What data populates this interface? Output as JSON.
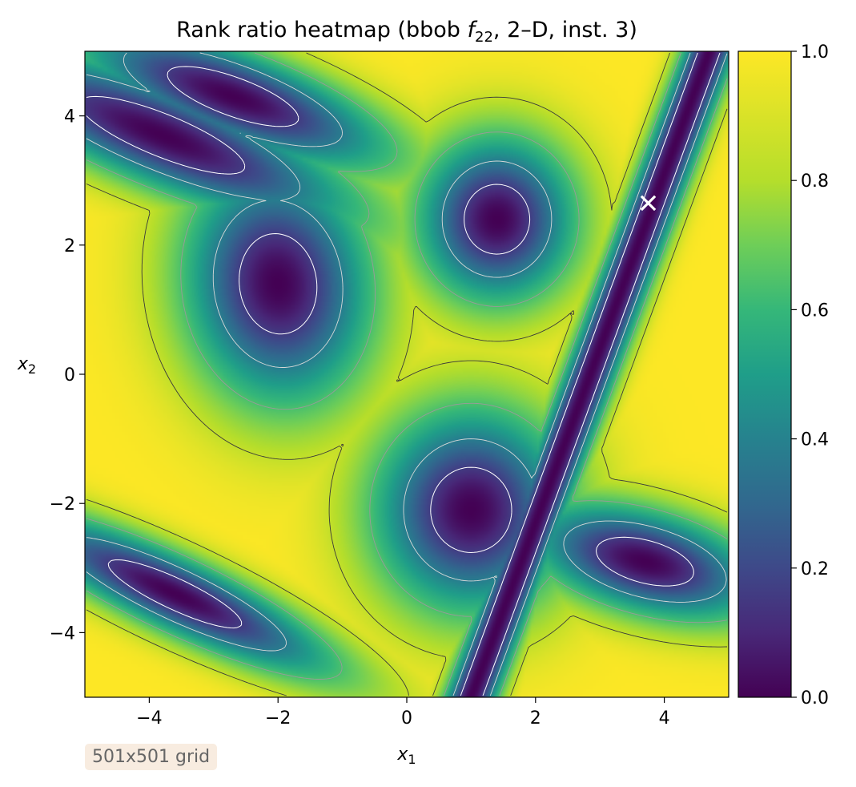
{
  "chart_data": {
    "type": "heatmap",
    "title_parts": {
      "prefix": "Rank ratio heatmap (bbob ",
      "func": "f",
      "sub": "22",
      "suffix": ", 2–D, inst. 3)"
    },
    "xlabel": {
      "base": "x",
      "sub": "1"
    },
    "ylabel": {
      "base": "x",
      "sub": "2"
    },
    "xlim": [
      -5,
      5
    ],
    "ylim": [
      -5,
      5
    ],
    "xticks": [
      -4,
      -2,
      0,
      2,
      4
    ],
    "yticks": [
      -4,
      -2,
      0,
      2,
      4
    ],
    "xtick_labels": [
      "−4",
      "−2",
      "0",
      "2",
      "4"
    ],
    "ytick_labels": [
      "−4",
      "−2",
      "0",
      "2",
      "4"
    ],
    "colormap": "viridis",
    "colorbar": {
      "range": [
        0,
        1
      ],
      "ticks": [
        0.0,
        0.2,
        0.4,
        0.6,
        0.8,
        1.0
      ],
      "tick_labels": [
        "0.0",
        "0.2",
        "0.4",
        "0.6",
        "0.8",
        "1.0"
      ]
    },
    "grid": false,
    "basins": [
      {
        "name": "upper-left elongated",
        "center": [
          -3.8,
          3.7
        ],
        "semi_axes": [
          2.3,
          0.55
        ],
        "angle_deg": -22
      },
      {
        "name": "top ellipse",
        "center": [
          -2.7,
          4.3
        ],
        "semi_axes": [
          1.8,
          0.5
        ],
        "angle_deg": -20
      },
      {
        "name": "left-center oval",
        "center": [
          -2.0,
          1.4
        ],
        "semi_axes": [
          1.0,
          1.3
        ],
        "angle_deg": 8
      },
      {
        "name": "upper-center round",
        "center": [
          1.4,
          2.4
        ],
        "semi_axes": [
          0.85,
          0.9
        ],
        "angle_deg": 0
      },
      {
        "name": "lower-center round",
        "center": [
          1.0,
          -2.1
        ],
        "semi_axes": [
          1.05,
          1.1
        ],
        "angle_deg": 0
      },
      {
        "name": "lower-left elongated",
        "center": [
          -3.6,
          -3.4
        ],
        "semi_axes": [
          1.9,
          0.4
        ],
        "angle_deg": -25
      },
      {
        "name": "lower-right ellipse",
        "center": [
          3.7,
          -2.9
        ],
        "semi_axes": [
          1.3,
          0.55
        ],
        "angle_deg": -15
      }
    ],
    "valley": {
      "from": [
        1.0,
        -5.0
      ],
      "to": [
        4.7,
        5.0
      ],
      "half_width": 0.27
    },
    "marker": {
      "symbol": "x",
      "x": 3.75,
      "y": 2.65,
      "color": "#ffffff"
    }
  },
  "annotation": {
    "text": "501x501 grid"
  }
}
